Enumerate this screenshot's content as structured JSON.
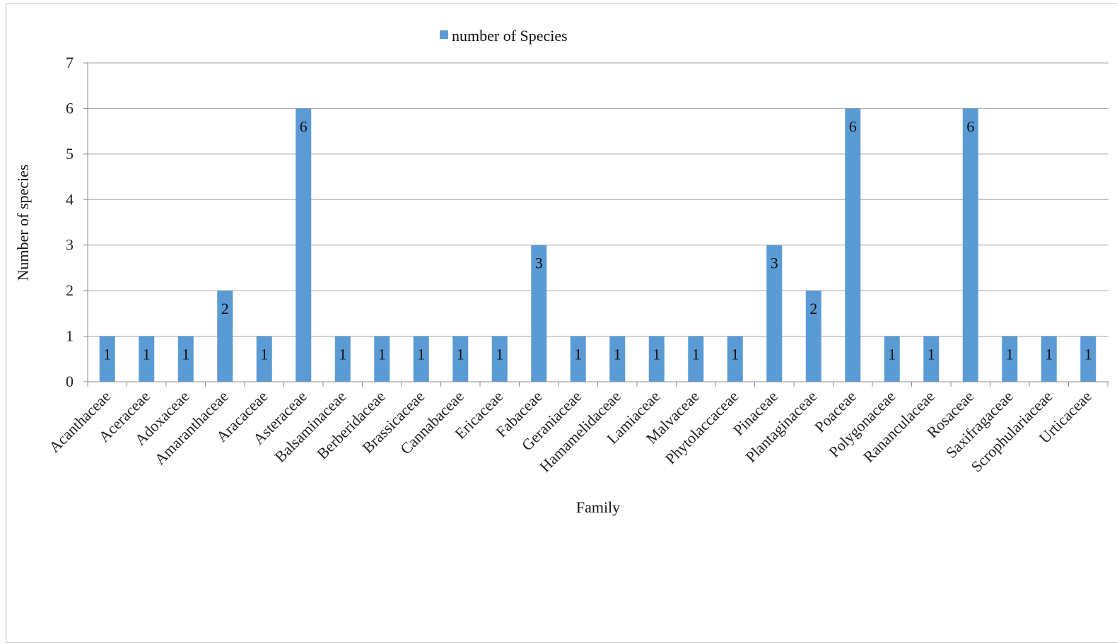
{
  "chart_data": {
    "type": "bar",
    "title": "",
    "xlabel": "Family",
    "ylabel": "Number of species",
    "ylim": [
      0,
      7
    ],
    "yticks": [
      0,
      1,
      2,
      3,
      4,
      5,
      6,
      7
    ],
    "grid": true,
    "legend_position": "top-center",
    "categories": [
      "Acanthaceae",
      "Aceraceae",
      "Adoxaceae",
      "Amaranthaceae",
      "Aracaceae",
      "Asteraceae",
      "Balsaminaceae",
      "Berberidaceae",
      "Brassicaceae",
      "Cannabaceae",
      "Ericaceae",
      "Fabaceae",
      "Geraniaceae",
      "Hamamelidaceae",
      "Lamiaceae",
      "Malvaceae",
      "Phytolaccaceae",
      "Pinaceae",
      "Plantaginaceae",
      "Poaceae",
      "Polygonaceae",
      "Rananculaceae",
      "Rosaceae",
      "Saxifragaceae",
      "Scrophulariaceae",
      "Urticaceae"
    ],
    "series": [
      {
        "name": "number of Species",
        "color": "#5b9bd5",
        "values": [
          1,
          1,
          1,
          2,
          1,
          6,
          1,
          1,
          1,
          1,
          1,
          3,
          1,
          1,
          1,
          1,
          1,
          3,
          2,
          6,
          1,
          1,
          6,
          1,
          1,
          1
        ]
      }
    ]
  }
}
